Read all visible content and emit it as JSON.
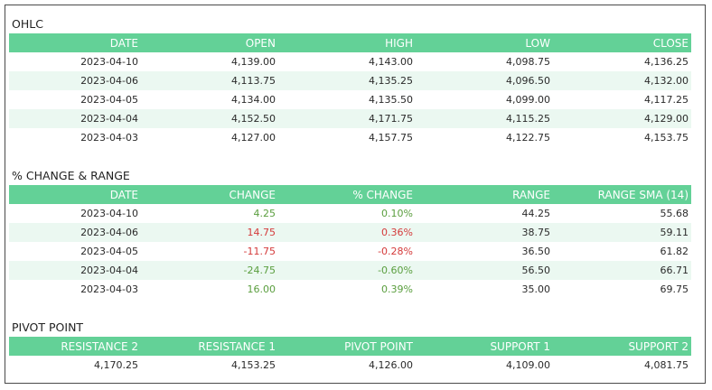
{
  "ohlc": {
    "title": "OHLC",
    "headers": [
      "DATE",
      "OPEN",
      "HIGH",
      "LOW",
      "CLOSE"
    ],
    "rows": [
      [
        "2023-04-10",
        "4,139.00",
        "4,143.00",
        "4,098.75",
        "4,136.25"
      ],
      [
        "2023-04-06",
        "4,113.75",
        "4,135.25",
        "4,096.50",
        "4,132.00"
      ],
      [
        "2023-04-05",
        "4,134.00",
        "4,135.50",
        "4,099.00",
        "4,117.25"
      ],
      [
        "2023-04-04",
        "4,152.50",
        "4,171.75",
        "4,115.25",
        "4,129.00"
      ],
      [
        "2023-04-03",
        "4,127.00",
        "4,157.75",
        "4,122.75",
        "4,153.75"
      ]
    ]
  },
  "change": {
    "title": "% CHANGE & RANGE",
    "headers": [
      "DATE",
      "CHANGE",
      "% CHANGE",
      "RANGE",
      "RANGE SMA (14)"
    ],
    "rows": [
      {
        "date": "2023-04-10",
        "change": "4.25",
        "pct": "0.10%",
        "range": "44.25",
        "sma": "55.68",
        "trend": "up"
      },
      {
        "date": "2023-04-06",
        "change": "14.75",
        "pct": "0.36%",
        "range": "38.75",
        "sma": "59.11",
        "trend": "down"
      },
      {
        "date": "2023-04-05",
        "change": "-11.75",
        "pct": "-0.28%",
        "range": "36.50",
        "sma": "61.82",
        "trend": "down"
      },
      {
        "date": "2023-04-04",
        "change": "-24.75",
        "pct": "-0.60%",
        "range": "56.50",
        "sma": "66.71",
        "trend": "up"
      },
      {
        "date": "2023-04-03",
        "change": "16.00",
        "pct": "0.39%",
        "range": "35.00",
        "sma": "69.75",
        "trend": "up"
      }
    ],
    "colors": {
      "up": "#5a9e3e",
      "down": "#d43a3a"
    }
  },
  "pivot": {
    "title": "PIVOT POINT",
    "headers": [
      "RESISTANCE 2",
      "RESISTANCE 1",
      "PIVOT POINT",
      "SUPPORT 1",
      "SUPPORT 2"
    ],
    "values": [
      "4,170.25",
      "4,153.25",
      "4,126.00",
      "4,109.00",
      "4,081.75"
    ]
  },
  "colors": {
    "header_bg": "#63d197",
    "row_alt": "#ebf8f1"
  }
}
